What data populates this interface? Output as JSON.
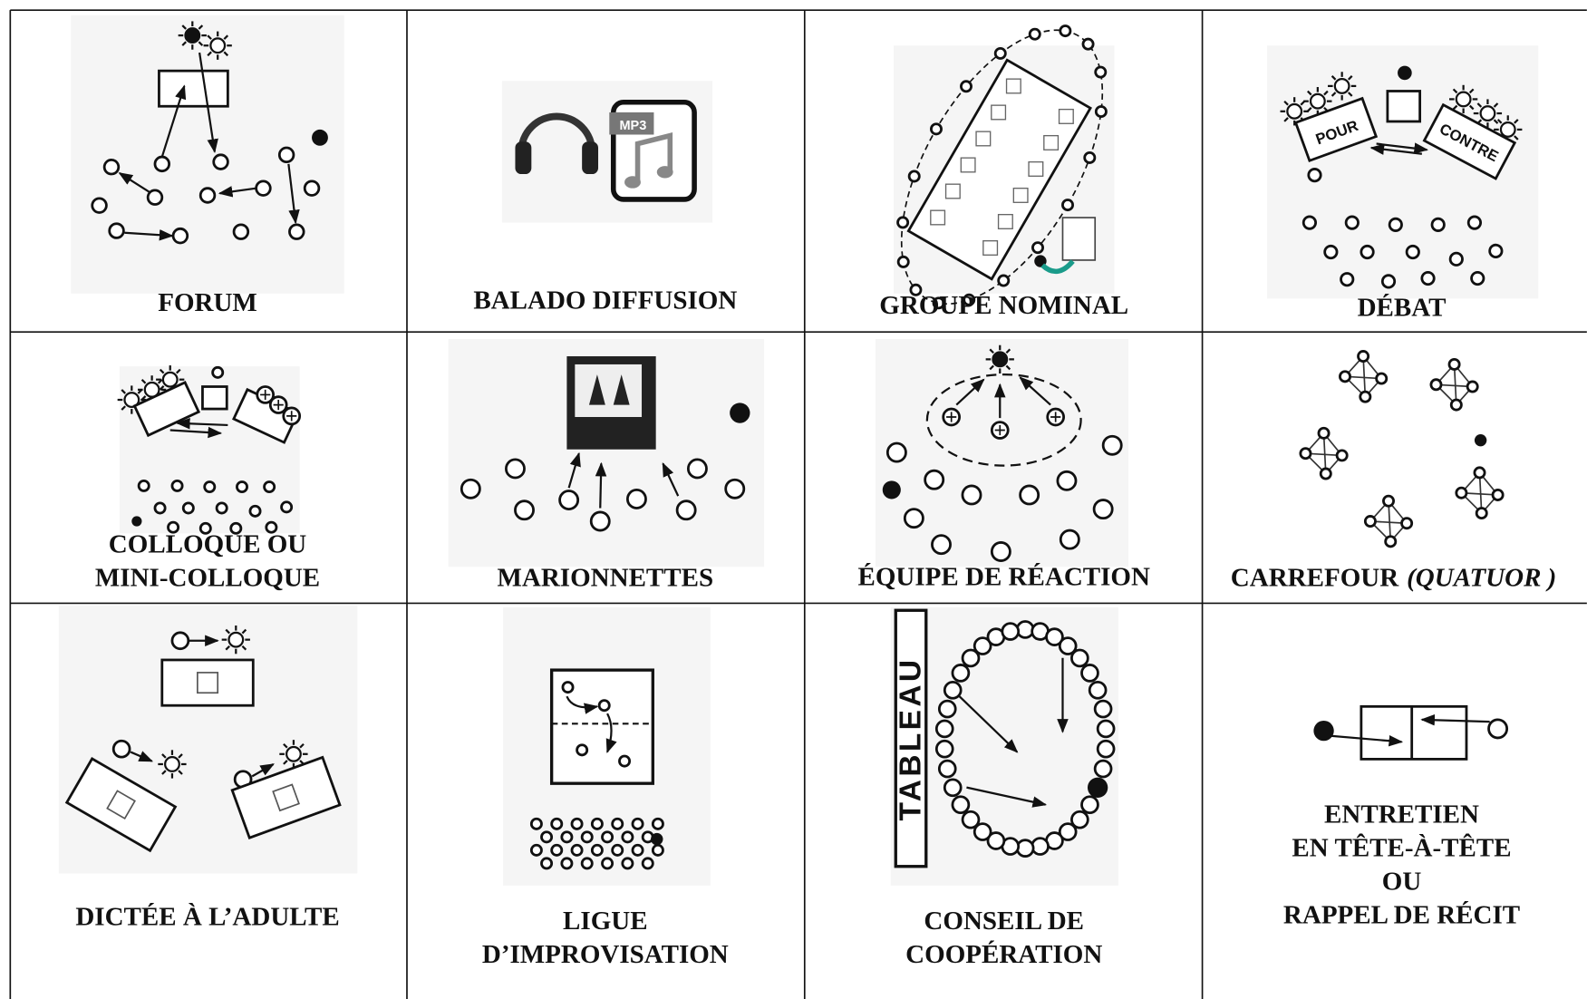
{
  "cells": [
    {
      "label": [
        "FORUM"
      ]
    },
    {
      "label": [
        "BALADO DIFFUSION"
      ],
      "icon_text": "MP3"
    },
    {
      "label": [
        "GROUPE NOMINAL"
      ]
    },
    {
      "label": [
        "DÉBAT"
      ],
      "signs": [
        "POUR",
        "CONTRE"
      ]
    },
    {
      "label": [
        "COLLOQUE OU",
        "MINI-COLLOQUE"
      ]
    },
    {
      "label": [
        "MARIONNETTES"
      ]
    },
    {
      "label": [
        "ÉQUIPE DE RÉACTION"
      ]
    },
    {
      "label": [
        "CARREFOUR"
      ],
      "label_italic": "(QUATUOR )"
    },
    {
      "label": [
        "DICTÉE À L’ADULTE"
      ]
    },
    {
      "label": [
        "LIGUE",
        "D’IMPROVISATION"
      ]
    },
    {
      "label": [
        "CONSEIL DE",
        "COOPÉRATION"
      ],
      "board": "TABLEAU"
    },
    {
      "label": [
        "ENTRETIEN",
        "EN TÊTE-À-TÊTE",
        "OU",
        "RAPPEL DE RÉCIT"
      ]
    }
  ]
}
